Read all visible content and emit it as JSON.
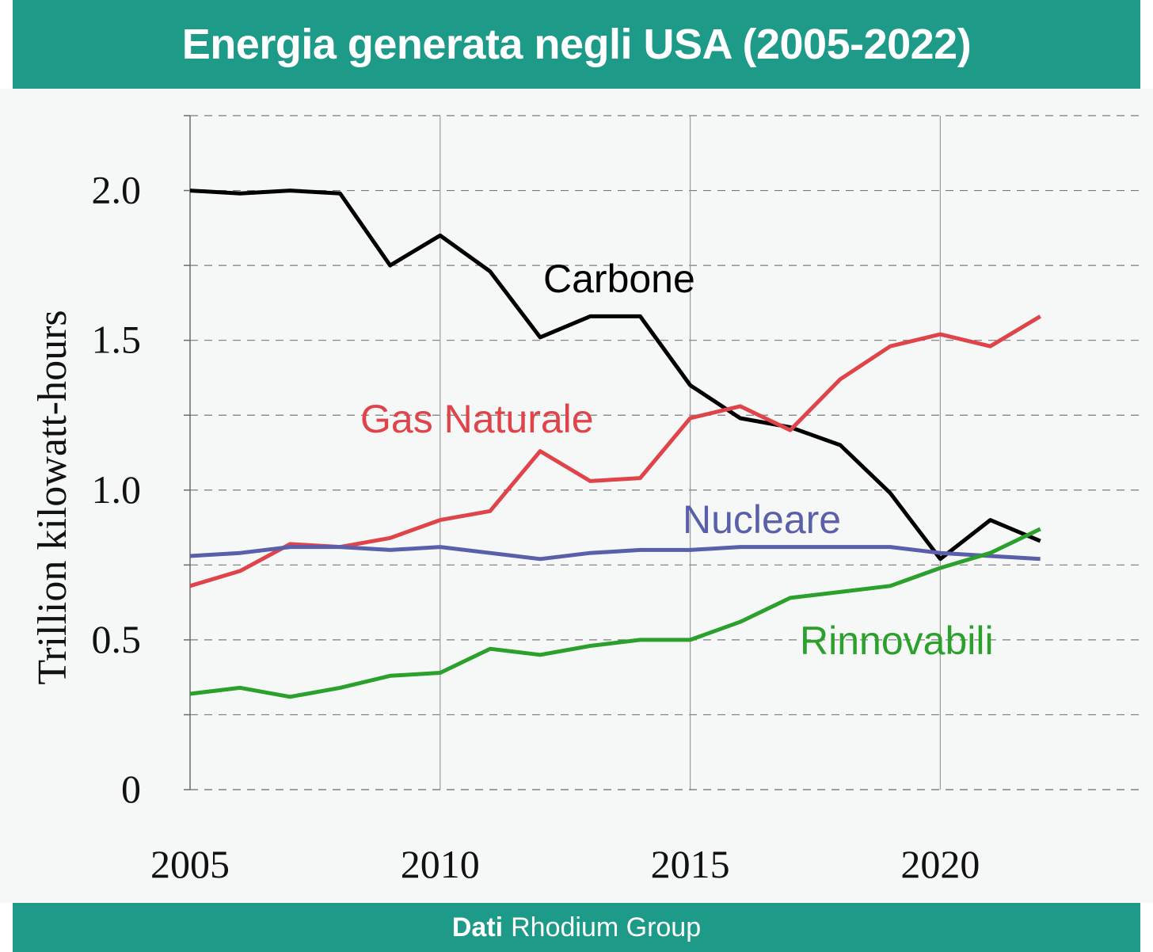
{
  "header": {
    "title": "Energia generata negli USA (2005-2022)"
  },
  "footer": {
    "source_bold": "Dati",
    "source_rest": "Rhodium Group"
  },
  "colors": {
    "brand": "#1d9a88",
    "panel": "#f6f8f7",
    "carbone": "#000000",
    "gas": "#e0444b",
    "nucleare": "#5a5faa",
    "rinnovabili": "#2ca02c"
  },
  "chart_data": {
    "type": "line",
    "title": "Energia generata negli USA (2005-2022)",
    "xlabel": "",
    "ylabel": "Trillion kilowatt-hours",
    "xlim": [
      2005,
      2024
    ],
    "ylim": [
      0,
      2.25
    ],
    "x_ticks": [
      2005,
      2010,
      2015,
      2020
    ],
    "x_tick_labels": [
      "2005",
      "2010",
      "2015",
      "2020"
    ],
    "y_ticks": [
      0,
      0.5,
      1.0,
      1.5,
      2.0
    ],
    "y_tick_labels": [
      "0",
      "0.5",
      "1.0",
      "1.5",
      "2.0"
    ],
    "grid": true,
    "x": [
      2005,
      2006,
      2007,
      2008,
      2009,
      2010,
      2011,
      2012,
      2013,
      2014,
      2015,
      2016,
      2017,
      2018,
      2019,
      2020,
      2021,
      2022
    ],
    "series": [
      {
        "name": "Carbone",
        "color": "#000000",
        "values": [
          2.0,
          1.99,
          2.0,
          1.99,
          1.75,
          1.85,
          1.73,
          1.51,
          1.58,
          1.58,
          1.35,
          1.24,
          1.21,
          1.15,
          0.99,
          0.77,
          0.9,
          0.83
        ]
      },
      {
        "name": "Gas Naturale",
        "color": "#e0444b",
        "values": [
          0.68,
          0.73,
          0.82,
          0.81,
          0.84,
          0.9,
          0.93,
          1.13,
          1.03,
          1.04,
          1.24,
          1.28,
          1.2,
          1.37,
          1.48,
          1.52,
          1.48,
          1.58
        ]
      },
      {
        "name": "Nucleare",
        "color": "#5a5faa",
        "values": [
          0.78,
          0.79,
          0.81,
          0.81,
          0.8,
          0.81,
          0.79,
          0.77,
          0.79,
          0.8,
          0.8,
          0.81,
          0.81,
          0.81,
          0.81,
          0.79,
          0.78,
          0.77
        ]
      },
      {
        "name": "Rinnovabili",
        "color": "#2ca02c",
        "values": [
          0.32,
          0.34,
          0.31,
          0.34,
          0.38,
          0.39,
          0.47,
          0.45,
          0.48,
          0.5,
          0.5,
          0.56,
          0.64,
          0.66,
          0.68,
          0.74,
          0.79,
          0.87
        ]
      }
    ],
    "annotations": [
      "Carbone",
      "Gas Naturale",
      "Nucleare",
      "Rinnovabili"
    ]
  }
}
